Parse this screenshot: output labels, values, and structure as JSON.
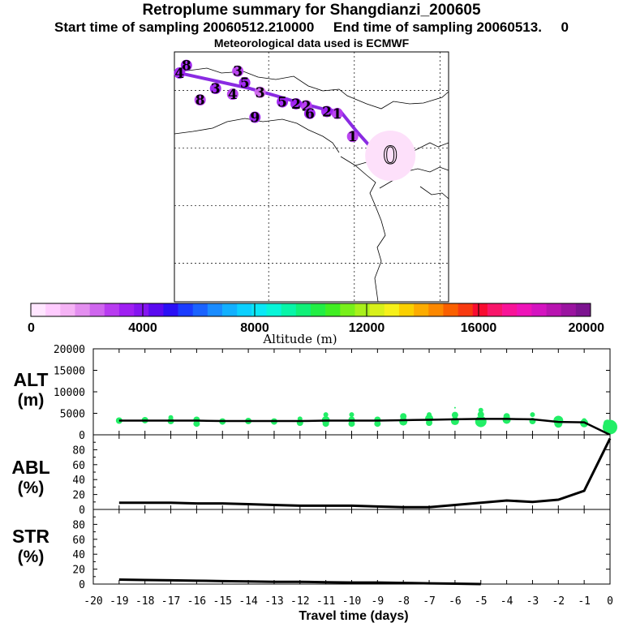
{
  "header": {
    "title": "Retroplume summary for Shangdianzi_200605",
    "sampling": "Start time of sampling 20060512.210000     End time of sampling 20060513.     0",
    "met": "Meteorological data used is ECMWF"
  },
  "colorbar": {
    "label": "Altitude (m)",
    "ticks": [
      "0",
      "4000",
      "8000",
      "12000",
      "16000",
      "20000"
    ],
    "colors": [
      "#ffe6ff",
      "#ffccff",
      "#f5b3f5",
      "#e38fef",
      "#cf66ee",
      "#b83cf0",
      "#9f1ff2",
      "#8414f0",
      "#5a0af0",
      "#2a10f5",
      "#1a3cff",
      "#1a63ff",
      "#1a8cff",
      "#12b0ff",
      "#0cd0ff",
      "#0ae8f6",
      "#08f5d8",
      "#08f5a8",
      "#10f078",
      "#22ee44",
      "#40ee22",
      "#78f01a",
      "#a8f01a",
      "#d8f01a",
      "#f6f01a",
      "#fad000",
      "#fcac00",
      "#fc8800",
      "#fa6000",
      "#f83a10",
      "#f80c30",
      "#f8166a",
      "#f81498",
      "#ee14b8",
      "#d414c0",
      "#b814b0",
      "#9a14a0",
      "#7c1490"
    ]
  },
  "map": {
    "points": [
      {
        "label": "0",
        "lon": 117.1,
        "lat": 40.6,
        "alt": 500,
        "big": true
      },
      {
        "label": "1",
        "lon": 114.9,
        "lat": 41.6,
        "alt": 2800
      },
      {
        "label": "1",
        "lon": 114.0,
        "lat": 42.8,
        "alt": 3100
      },
      {
        "label": "2",
        "lon": 113.4,
        "lat": 42.9,
        "alt": 3200
      },
      {
        "label": "2",
        "lon": 112.2,
        "lat": 43.2,
        "alt": 3000
      },
      {
        "label": "2",
        "lon": 111.6,
        "lat": 43.3,
        "alt": 3500
      },
      {
        "label": "5",
        "lon": 110.8,
        "lat": 43.4,
        "alt": 3200
      },
      {
        "label": "6",
        "lon": 112.4,
        "lat": 42.8,
        "alt": 3300
      },
      {
        "label": "3",
        "lon": 109.5,
        "lat": 43.9,
        "alt": 2500
      },
      {
        "label": "4",
        "lon": 107.9,
        "lat": 43.8,
        "alt": 3100
      },
      {
        "label": "3",
        "lon": 106.9,
        "lat": 44.1,
        "alt": 3400
      },
      {
        "label": "8",
        "lon": 106.0,
        "lat": 43.5,
        "alt": 3000
      },
      {
        "label": "9",
        "lon": 109.2,
        "lat": 42.6,
        "alt": 3200
      },
      {
        "label": "5",
        "lon": 108.6,
        "lat": 44.4,
        "alt": 3300
      },
      {
        "label": "3",
        "lon": 108.2,
        "lat": 45.0,
        "alt": 3000
      },
      {
        "label": "8",
        "lon": 105.2,
        "lat": 45.3,
        "alt": 3500
      },
      {
        "label": "4",
        "lon": 104.8,
        "lat": 44.9,
        "alt": 3600
      }
    ],
    "trajectory_path": [
      [
        117.1,
        40.6
      ],
      [
        116.0,
        41.0
      ],
      [
        115.1,
        41.9
      ],
      [
        114.2,
        42.9
      ],
      [
        113.3,
        43.0
      ],
      [
        111.6,
        43.4
      ],
      [
        110.5,
        43.7
      ],
      [
        108.9,
        44.1
      ],
      [
        104.8,
        44.9
      ]
    ]
  },
  "chart_data": [
    {
      "type": "scatter",
      "title": "ALT",
      "ylabel": "ALT (m)",
      "xlabel": "Travel time (days)",
      "xlim": [
        -20,
        0
      ],
      "ylim": [
        0,
        20000
      ],
      "yticks": [
        "20000",
        "15000",
        "10000",
        "5000",
        "0"
      ],
      "mean_line": {
        "x": [
          -19,
          -18,
          -17,
          -16,
          -15,
          -14,
          -13,
          -12,
          -11,
          -10,
          -9,
          -8,
          -7,
          -6,
          -5,
          -4,
          -3,
          -2,
          -1,
          0
        ],
        "y": [
          3300,
          3300,
          3300,
          3300,
          3200,
          3200,
          3200,
          3200,
          3300,
          3300,
          3300,
          3400,
          3500,
          3600,
          3700,
          3700,
          3600,
          3000,
          2900,
          0
        ]
      },
      "points": [
        {
          "x": -19,
          "y": 3300,
          "s": 4
        },
        {
          "x": -18,
          "y": 3400,
          "s": 4
        },
        {
          "x": -17,
          "y": 3200,
          "s": 4
        },
        {
          "x": -17,
          "y": 4000,
          "s": 3
        },
        {
          "x": -16,
          "y": 3500,
          "s": 4
        },
        {
          "x": -16,
          "y": 2600,
          "s": 4
        },
        {
          "x": -15,
          "y": 3100,
          "s": 4
        },
        {
          "x": -14,
          "y": 3200,
          "s": 4
        },
        {
          "x": -13,
          "y": 3100,
          "s": 4
        },
        {
          "x": -12,
          "y": 2800,
          "s": 4
        },
        {
          "x": -12,
          "y": 3700,
          "s": 3
        },
        {
          "x": -11,
          "y": 3400,
          "s": 5
        },
        {
          "x": -11,
          "y": 2600,
          "s": 4
        },
        {
          "x": -11,
          "y": 4700,
          "s": 3
        },
        {
          "x": -10,
          "y": 3500,
          "s": 4
        },
        {
          "x": -10,
          "y": 2600,
          "s": 4
        },
        {
          "x": -10,
          "y": 4700,
          "s": 3
        },
        {
          "x": -9,
          "y": 3500,
          "s": 4
        },
        {
          "x": -9,
          "y": 2600,
          "s": 4
        },
        {
          "x": -8,
          "y": 3100,
          "s": 5
        },
        {
          "x": -8,
          "y": 4300,
          "s": 4
        },
        {
          "x": -7,
          "y": 3800,
          "s": 5
        },
        {
          "x": -7,
          "y": 2800,
          "s": 4
        },
        {
          "x": -7,
          "y": 4700,
          "s": 3
        },
        {
          "x": -6,
          "y": 3200,
          "s": 5
        },
        {
          "x": -6,
          "y": 4600,
          "s": 4
        },
        {
          "x": -6,
          "y": 6300,
          "s": 1
        },
        {
          "x": -5,
          "y": 3100,
          "s": 7
        },
        {
          "x": -5,
          "y": 4700,
          "s": 4
        },
        {
          "x": -5,
          "y": 5700,
          "s": 3
        },
        {
          "x": -4,
          "y": 3500,
          "s": 5
        },
        {
          "x": -4,
          "y": 4300,
          "s": 4
        },
        {
          "x": -3,
          "y": 3200,
          "s": 4
        },
        {
          "x": -3,
          "y": 4700,
          "s": 3
        },
        {
          "x": -2,
          "y": 3300,
          "s": 6
        },
        {
          "x": -2,
          "y": 2600,
          "s": 5
        },
        {
          "x": -1,
          "y": 2700,
          "s": 5
        },
        {
          "x": -1,
          "y": 3300,
          "s": 3
        },
        {
          "x": 0,
          "y": 1800,
          "s": 9
        },
        {
          "x": -0.1,
          "y": 2600,
          "s": 5
        }
      ]
    },
    {
      "type": "line",
      "title": "ABL",
      "ylabel": "ABL (%)",
      "xlim": [
        -20,
        0
      ],
      "ylim": [
        0,
        100
      ],
      "yticks": [
        "80",
        "60",
        "40",
        "20",
        "0"
      ],
      "x": [
        -19,
        -18,
        -17,
        -16,
        -15,
        -14,
        -13,
        -12,
        -11,
        -10,
        -9,
        -8,
        -7,
        -6,
        -5,
        -4,
        -3,
        -2,
        -1,
        0
      ],
      "values": [
        9,
        9,
        9,
        8,
        8,
        7,
        6,
        5,
        5,
        5,
        4,
        3,
        3,
        6,
        9,
        12,
        10,
        13,
        25,
        95
      ]
    },
    {
      "type": "line",
      "title": "STR",
      "ylabel": "STR (%)",
      "xlim": [
        -20,
        0
      ],
      "ylim": [
        0,
        100
      ],
      "yticks": [
        "80",
        "60",
        "40",
        "20",
        "0"
      ],
      "x": [
        -19,
        -18,
        -17,
        -16,
        -15,
        -14,
        -13,
        -12,
        -11,
        -10,
        -9,
        -8,
        -7,
        -6,
        -5
      ],
      "values": [
        6,
        5.5,
        5,
        4.5,
        4,
        3.5,
        3,
        3,
        2.5,
        2,
        2,
        1.5,
        1,
        0.5,
        0
      ]
    }
  ],
  "xaxis": {
    "label": "Travel time (days)",
    "ticks": [
      "-20",
      "-19",
      "-18",
      "-17",
      "-16",
      "-15",
      "-14",
      "-13",
      "-12",
      "-11",
      "-10",
      "-9",
      "-8",
      "-7",
      "-6",
      "-5",
      "-4",
      "-3",
      "-2",
      "-1",
      "0"
    ]
  }
}
